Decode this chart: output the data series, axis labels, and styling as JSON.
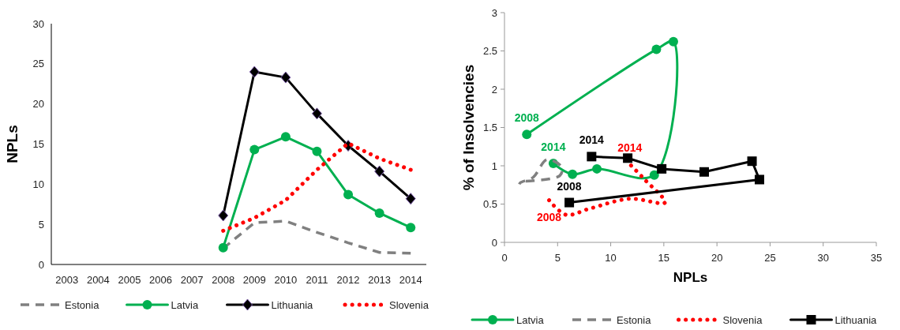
{
  "chart_data": [
    {
      "type": "line",
      "ylabel": "NPLs",
      "categories": [
        "2003",
        "2004",
        "2005",
        "2006",
        "2007",
        "2008",
        "2009",
        "2010",
        "2011",
        "2012",
        "2013",
        "2014"
      ],
      "ylim": [
        0,
        30
      ],
      "yticks": [
        0,
        5,
        10,
        15,
        20,
        25,
        30
      ],
      "legend": "bottom",
      "series": [
        {
          "name": "Estonia",
          "color": "#808080",
          "line_style": "dashed",
          "marker": "none",
          "values": [
            null,
            null,
            null,
            null,
            null,
            2.0,
            5.2,
            5.4,
            4.0,
            2.7,
            1.5,
            1.4
          ]
        },
        {
          "name": "Latvia",
          "color": "#00b050",
          "line_style": "solid",
          "marker": "circle",
          "values": [
            null,
            null,
            null,
            null,
            null,
            2.1,
            14.3,
            15.9,
            14.1,
            8.7,
            6.4,
            4.6
          ]
        },
        {
          "name": "Lithuania",
          "color": "#000000",
          "line_style": "solid",
          "marker": "diamond",
          "values": [
            null,
            null,
            null,
            null,
            null,
            6.1,
            24.0,
            23.3,
            18.8,
            14.8,
            11.6,
            8.2
          ]
        },
        {
          "name": "Slovenia",
          "color": "#ff0000",
          "line_style": "dotted",
          "marker": "none",
          "values": [
            null,
            null,
            null,
            null,
            null,
            4.2,
            5.8,
            8.0,
            11.8,
            15.1,
            13.2,
            11.8
          ]
        }
      ]
    },
    {
      "type": "line",
      "xlabel": "NPLs",
      "ylabel": "% of Insolvencies",
      "xlim": [
        0,
        35
      ],
      "xticks": [
        0,
        5,
        10,
        15,
        20,
        25,
        30,
        35
      ],
      "ylim": [
        0,
        3
      ],
      "yticks": [
        0,
        0.5,
        1,
        1.5,
        2,
        2.5,
        3
      ],
      "legend": "bottom",
      "series": [
        {
          "name": "Latvia",
          "color": "#00b050",
          "line_style": "solid",
          "marker": "circle",
          "x": [
            2.1,
            14.3,
            15.9,
            14.1,
            8.7,
            6.4,
            4.6
          ],
          "values": [
            1.41,
            2.52,
            2.62,
            0.88,
            0.96,
            0.89,
            1.03
          ]
        },
        {
          "name": "Estonia",
          "color": "#808080",
          "line_style": "dashed",
          "marker": "none",
          "x": [
            2.0,
            5.2,
            5.4,
            4.0,
            2.7,
            1.5,
            1.4
          ],
          "values": [
            0.8,
            0.87,
            0.98,
            1.08,
            0.85,
            0.78,
            0.76
          ]
        },
        {
          "name": "Slovenia",
          "color": "#ff0000",
          "line_style": "dotted",
          "marker": "none",
          "x": [
            4.2,
            5.8,
            8.0,
            11.8,
            15.1,
            13.2,
            11.8
          ],
          "values": [
            0.55,
            0.36,
            0.44,
            0.57,
            0.52,
            0.82,
            1.02
          ]
        },
        {
          "name": "Lithuania",
          "color": "#000000",
          "line_style": "solid",
          "marker": "square",
          "x": [
            6.1,
            24.0,
            23.3,
            18.8,
            14.8,
            11.6,
            8.2
          ],
          "values": [
            0.52,
            0.82,
            1.06,
            0.92,
            0.96,
            1.1,
            1.12
          ]
        }
      ],
      "annotations": [
        {
          "text": "2008",
          "x": 2.1,
          "y": 1.41
        },
        {
          "text": "2014",
          "x": 4.6,
          "y": 1.03
        },
        {
          "text": "2014",
          "x": 8.2,
          "y": 1.12
        },
        {
          "text": "2008",
          "x": 6.1,
          "y": 0.52
        },
        {
          "text": "2014",
          "x": 11.8,
          "y": 1.02
        },
        {
          "text": "2008",
          "x": 4.2,
          "y": 0.55
        }
      ]
    }
  ]
}
